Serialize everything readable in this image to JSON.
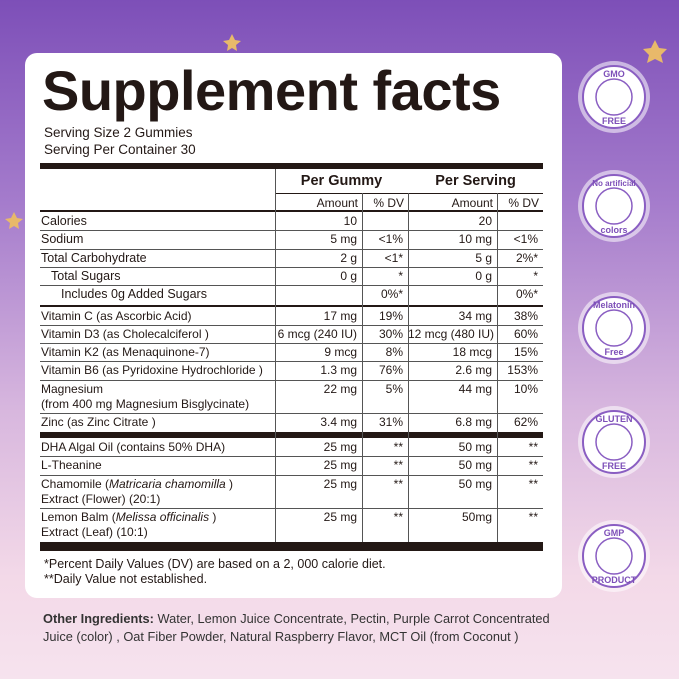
{
  "label": {
    "title": "Supplement facts",
    "serving_size": "Serving Size 2 Gummies",
    "servings_per_container": "Serving Per Container 30",
    "table": {
      "header": {
        "gummy": "Per Gummy",
        "serving": "Per Serving"
      },
      "subheader": {
        "amount": "Amount",
        "dv": "% DV"
      },
      "rows": [
        {
          "lines": [
            [
              "Calories"
            ]
          ],
          "gummy_amount": "10",
          "gummy_dv": null,
          "serving_amount": "20",
          "serving_dv": null,
          "group": 0,
          "indent": 0
        },
        {
          "lines": [
            [
              "Sodium"
            ]
          ],
          "gummy_amount": "5 mg",
          "gummy_dv": "<1%",
          "serving_amount": "10 mg",
          "serving_dv": "<1%",
          "group": 0,
          "indent": 0
        },
        {
          "lines": [
            [
              "Total Carbohydrate"
            ]
          ],
          "gummy_amount": "2 g",
          "gummy_dv": "<1*",
          "serving_amount": "5 g",
          "serving_dv": "2%*",
          "group": 0,
          "indent": 0
        },
        {
          "lines": [
            [
              "Total Sugars"
            ]
          ],
          "gummy_amount": "0 g",
          "gummy_dv": "*",
          "serving_amount": "0 g",
          "serving_dv": "*",
          "group": 0,
          "indent": 1
        },
        {
          "lines": [
            [
              "Includes 0g  Added  Sugars"
            ]
          ],
          "gummy_amount": null,
          "gummy_dv": "0%*",
          "serving_amount": null,
          "serving_dv": "0%*",
          "group": 0,
          "indent": 2
        },
        {
          "lines": [
            [
              "Vitamin C (as Ascorbic Acid)"
            ]
          ],
          "gummy_amount": "17 mg",
          "gummy_dv": "19%",
          "serving_amount": "34 mg",
          "serving_dv": "38%",
          "group": 1,
          "indent": 0
        },
        {
          "lines": [
            [
              "Vitamin D3 (as Cholecalciferol )"
            ]
          ],
          "gummy_amount": "6 mcg (240 IU)",
          "gummy_dv": "30%",
          "serving_amount": "12 mcg (480 IU)",
          "serving_dv": "60%",
          "group": 1,
          "indent": 0
        },
        {
          "lines": [
            [
              "Vitamin K2 (as Menaquinone-7)"
            ]
          ],
          "gummy_amount": "9 mcg",
          "gummy_dv": "8%",
          "serving_amount": "18 mcg",
          "serving_dv": "15%",
          "group": 1,
          "indent": 0
        },
        {
          "lines": [
            [
              "Vitamin B6 (as Pyridoxine Hydrochloride )"
            ]
          ],
          "gummy_amount": "1.3 mg",
          "gummy_dv": "76%",
          "serving_amount": "2.6 mg",
          "serving_dv": "153%",
          "group": 1,
          "indent": 0
        },
        {
          "lines": [
            [
              "Magnesium"
            ],
            [
              "(from 400 mg Magnesium Bisglycinate)"
            ]
          ],
          "gummy_amount": "22 mg",
          "gummy_dv": "5%",
          "serving_amount": "44 mg",
          "serving_dv": "10%",
          "group": 1,
          "indent": 0
        },
        {
          "lines": [
            [
              "Zinc (as Zinc Citrate )"
            ]
          ],
          "gummy_amount": "3.4 mg",
          "gummy_dv": "31%",
          "serving_amount": "6.8 mg",
          "serving_dv": "62%",
          "group": 1,
          "indent": 0
        },
        {
          "lines": [
            [
              "DHA Algal Oil (contains 50% DHA)"
            ]
          ],
          "gummy_amount": "25 mg",
          "gummy_dv": "**",
          "serving_amount": "50 mg",
          "serving_dv": "**",
          "group": 2,
          "indent": 0
        },
        {
          "lines": [
            [
              "L-Theanine"
            ]
          ],
          "gummy_amount": "25 mg",
          "gummy_dv": "**",
          "serving_amount": "50 mg",
          "serving_dv": "**",
          "group": 2,
          "indent": 0
        },
        {
          "lines": [
            [
              "Chamomile (",
              {
                "text": "Matricaria chamomilla",
                "italic": true
              },
              " )"
            ],
            [
              "Extract (Flower) (20:1)"
            ]
          ],
          "gummy_amount": "25 mg",
          "gummy_dv": "**",
          "serving_amount": "50 mg",
          "serving_dv": "**",
          "group": 2,
          "indent": 0
        },
        {
          "lines": [
            [
              "Lemon Balm (",
              {
                "text": "Melissa officinalis",
                "italic": true
              },
              " )"
            ],
            [
              "Extract (Leaf) (10:1)"
            ]
          ],
          "gummy_amount": "25 mg",
          "gummy_dv": "**",
          "serving_amount": "50mg",
          "serving_dv": "**",
          "group": 2,
          "indent": 0
        }
      ]
    },
    "footnotes": [
      "*Percent Daily Values (DV) are based on a 2, 000 calorie diet.",
      "**Daily Value not established."
    ]
  },
  "other_ingredients": {
    "heading": "Other Ingredients:",
    "lines": [
      " Water, Lemon Juice Concentrate, Pectin, Purple Carrot Concentrated",
      "Juice (color) , Oat Fiber Powder, Natural Raspberry Flavor, MCT Oil (from Coconut )"
    ]
  },
  "badges": [
    {
      "top": "GMO",
      "bottom": "FREE"
    },
    {
      "top": "No artificial",
      "bottom": "colors"
    },
    {
      "top": "Melatonin",
      "bottom": "Free"
    },
    {
      "top": "GLUTEN",
      "bottom": "FREE"
    },
    {
      "top": "GMP",
      "bottom": "PRODUCT"
    }
  ]
}
